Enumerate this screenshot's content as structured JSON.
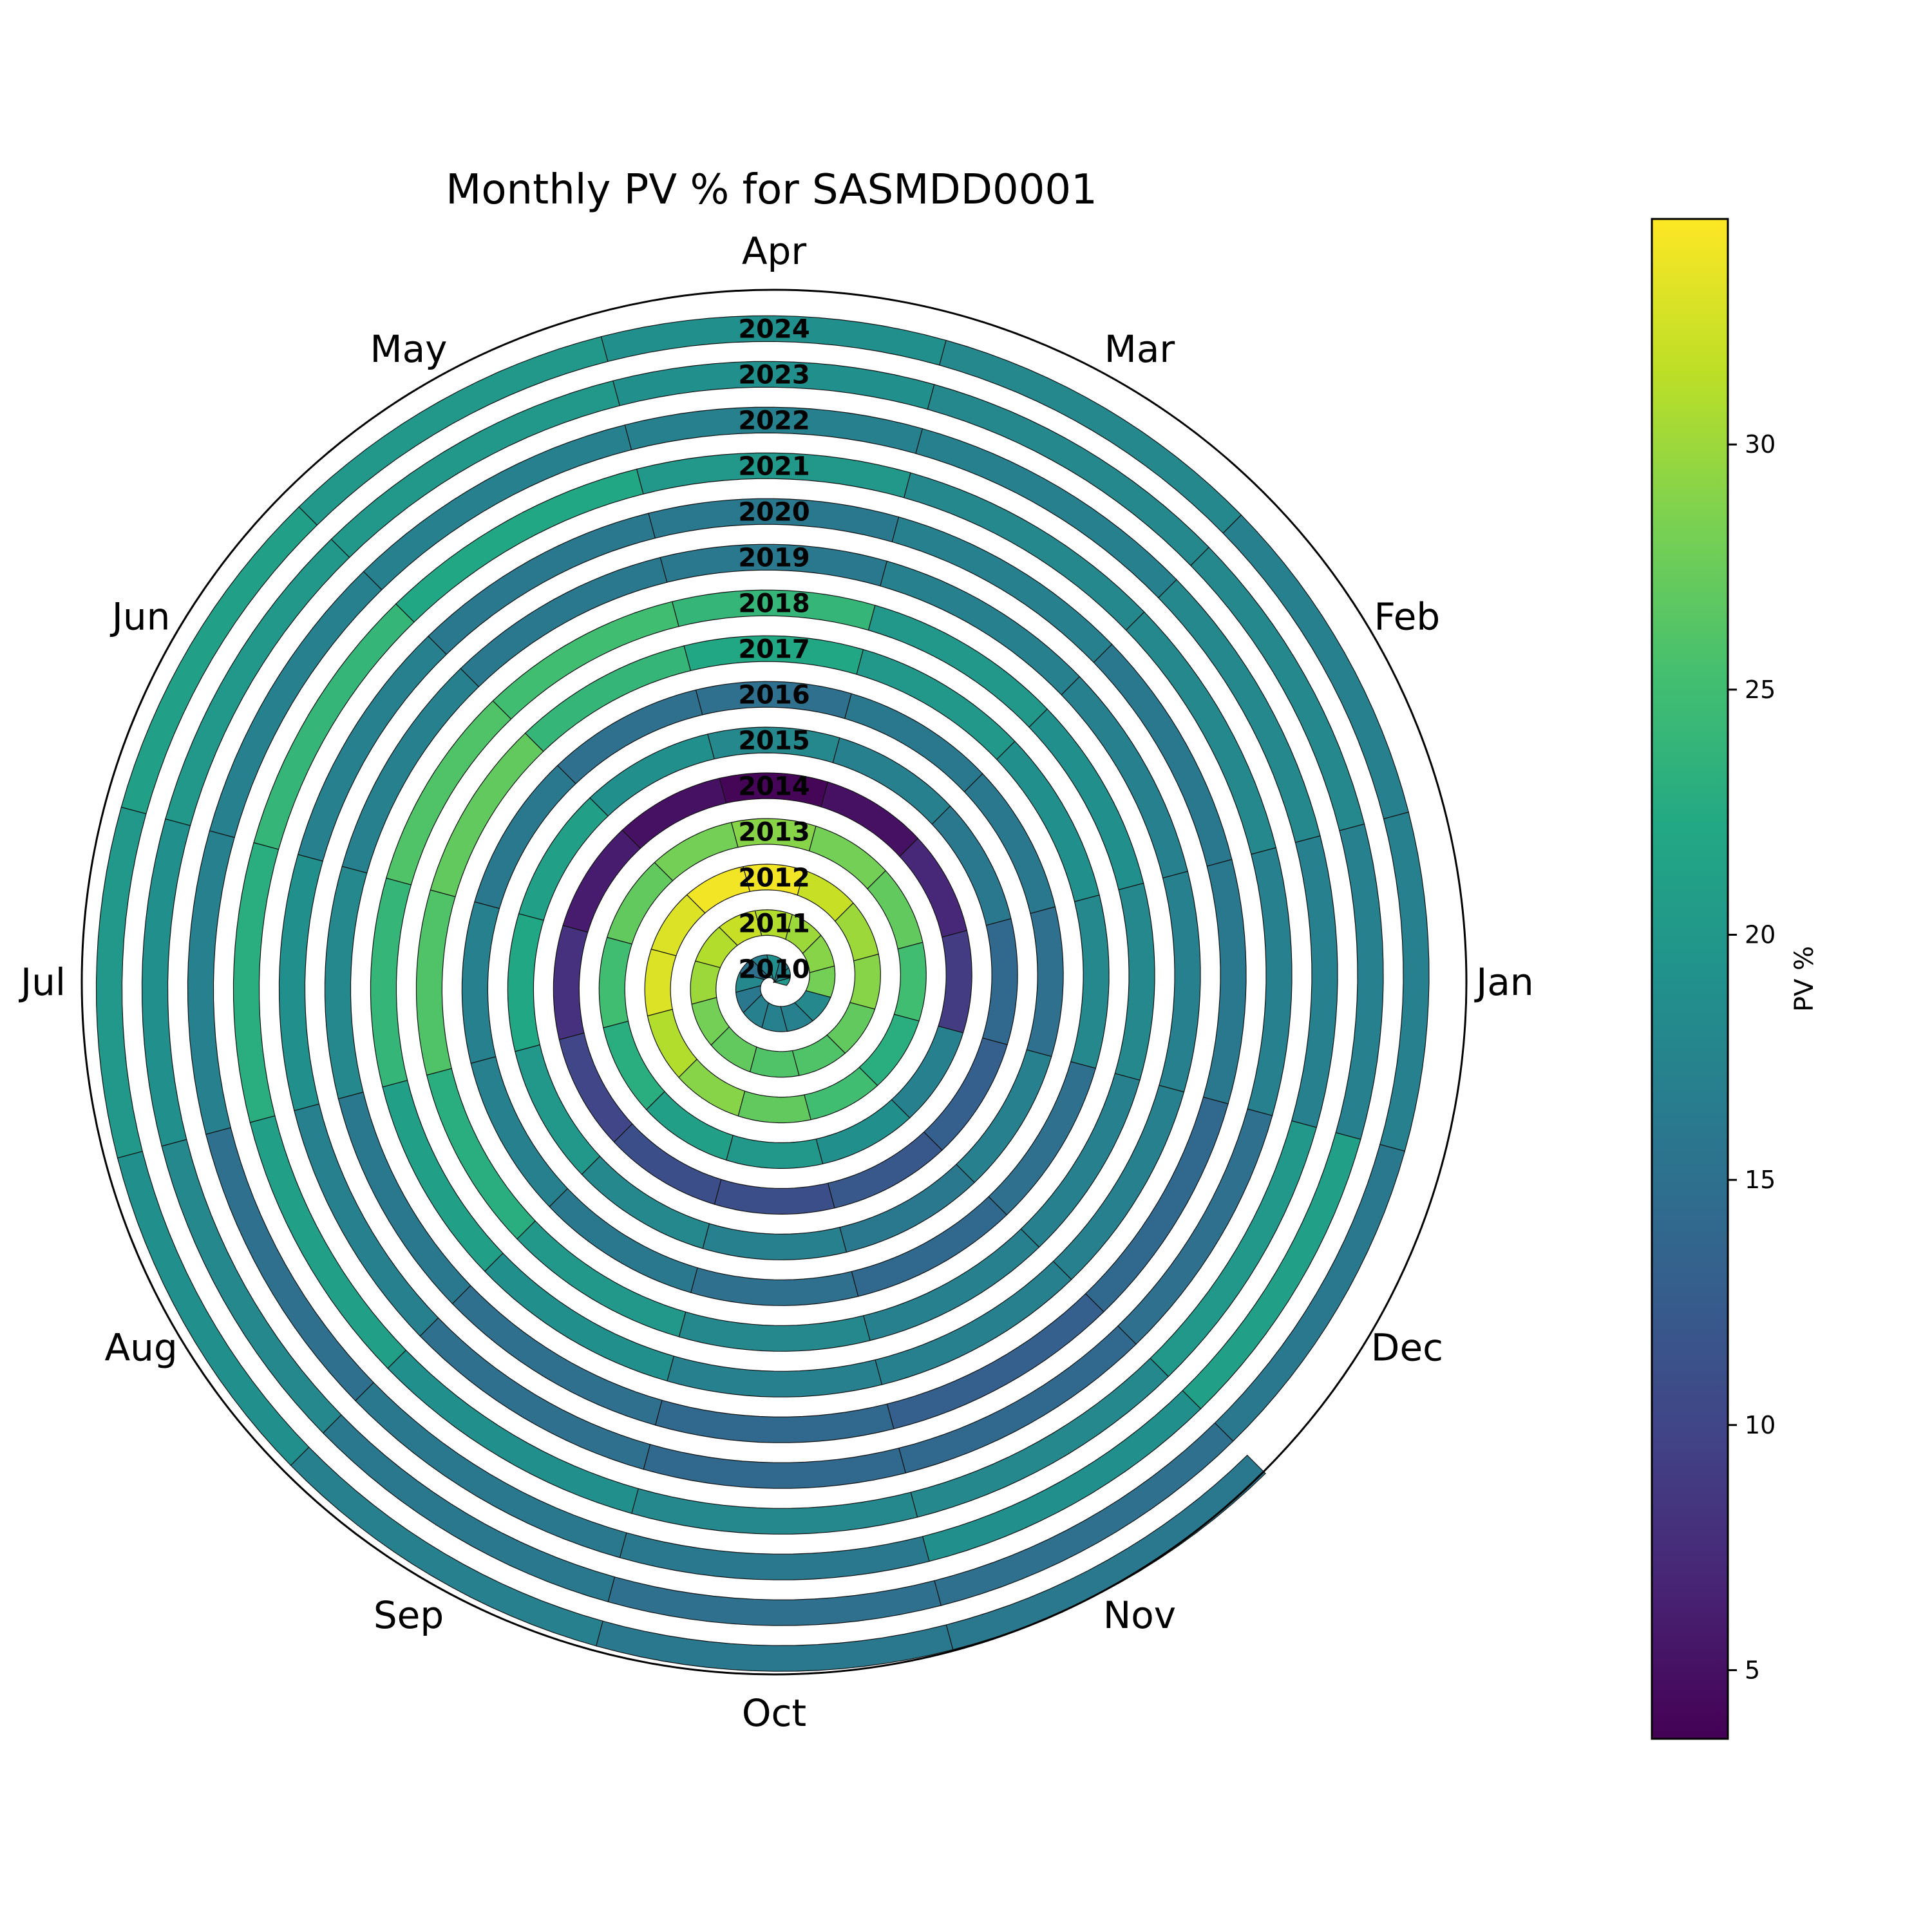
{
  "chart_data": {
    "type": "heatmap",
    "subtype": "polar-spiral",
    "title": "Monthly PV % for SASMDD0001",
    "months": [
      "Jan",
      "Feb",
      "Mar",
      "Apr",
      "May",
      "Jun",
      "Jul",
      "Aug",
      "Sep",
      "Oct",
      "Nov",
      "Dec"
    ],
    "years": [
      "2010",
      "2011",
      "2012",
      "2013",
      "2014",
      "2015",
      "2016",
      "2017",
      "2018",
      "2019",
      "2020",
      "2021",
      "2022",
      "2023",
      "2024"
    ],
    "values": [
      [
        20,
        18,
        17,
        19,
        17,
        15,
        18,
        16,
        17,
        17,
        17,
        18
      ],
      [
        28,
        29,
        30,
        31,
        32,
        31,
        30,
        28,
        27,
        26,
        26,
        27
      ],
      [
        29,
        30,
        32,
        34,
        34,
        33,
        33,
        31,
        29,
        27,
        25,
        23
      ],
      [
        25,
        27,
        28,
        29,
        28,
        27,
        25,
        23,
        21,
        20,
        19,
        17
      ],
      [
        9,
        7,
        5,
        4,
        5,
        6,
        8,
        10,
        11,
        11,
        12,
        13
      ],
      [
        14,
        16,
        17,
        18,
        19,
        21,
        22,
        20,
        18,
        17,
        16,
        17
      ],
      [
        15,
        16,
        16,
        15,
        15,
        16,
        17,
        17,
        16,
        15,
        14,
        15
      ],
      [
        18,
        19,
        20,
        22,
        24,
        27,
        26,
        23,
        20,
        18,
        17,
        17
      ],
      [
        18,
        19,
        20,
        24,
        25,
        26,
        24,
        21,
        19,
        17,
        17,
        17
      ],
      [
        17,
        17,
        17,
        16,
        16,
        17,
        18,
        16,
        15,
        14,
        13,
        14
      ],
      [
        16,
        16,
        17,
        16,
        16,
        17,
        19,
        17,
        15,
        14,
        14,
        15
      ],
      [
        17,
        18,
        18,
        20,
        22,
        24,
        23,
        21,
        19,
        18,
        18,
        20
      ],
      [
        17,
        18,
        17,
        17,
        17,
        17,
        17,
        15,
        16,
        16,
        19,
        21
      ],
      [
        17,
        18,
        18,
        19,
        20,
        20,
        19,
        18,
        16,
        15,
        15,
        16
      ],
      [
        17,
        17,
        18,
        19,
        20,
        21,
        20,
        19,
        17,
        16,
        16,
        null
      ]
    ],
    "colormap": "viridis",
    "vmin": 3.6,
    "vmax": 34.6,
    "colorbar": {
      "label": "PV %",
      "ticks": [
        5,
        10,
        15,
        20,
        25,
        30
      ]
    }
  }
}
